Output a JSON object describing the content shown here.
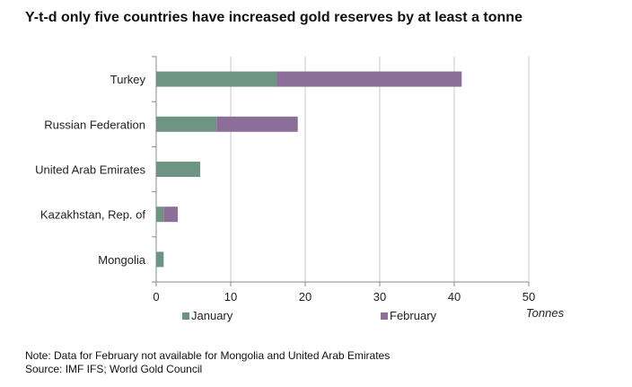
{
  "title": "Y-t-d only five countries have increased gold reserves by at least a tonne",
  "notes": {
    "note": "Note: Data for February not available for Mongolia and United Arab Emirates",
    "source": "Source: IMF IFS; World Gold Council"
  },
  "chart_data": {
    "type": "bar",
    "orientation": "horizontal",
    "stacked": true,
    "title": "Y-t-d only five countries have increased gold reserves by at least a tonne",
    "xlabel": "Tonnes",
    "ylabel": "",
    "xlim": [
      0,
      50
    ],
    "x_ticks": [
      0,
      10,
      20,
      30,
      40,
      50
    ],
    "grid": "vertical",
    "legend_position": "bottom",
    "categories": [
      "Turkey",
      "Russian Federation",
      "United Arab Emirates",
      "Kazakhstan, Rep. of",
      "Mongolia"
    ],
    "series": [
      {
        "name": "January",
        "color": "#6e9483",
        "values": [
          16.2,
          8.1,
          5.9,
          1.0,
          1.0
        ]
      },
      {
        "name": "February",
        "color": "#8c6f98",
        "values": [
          24.8,
          10.9,
          null,
          1.9,
          null
        ]
      }
    ]
  }
}
